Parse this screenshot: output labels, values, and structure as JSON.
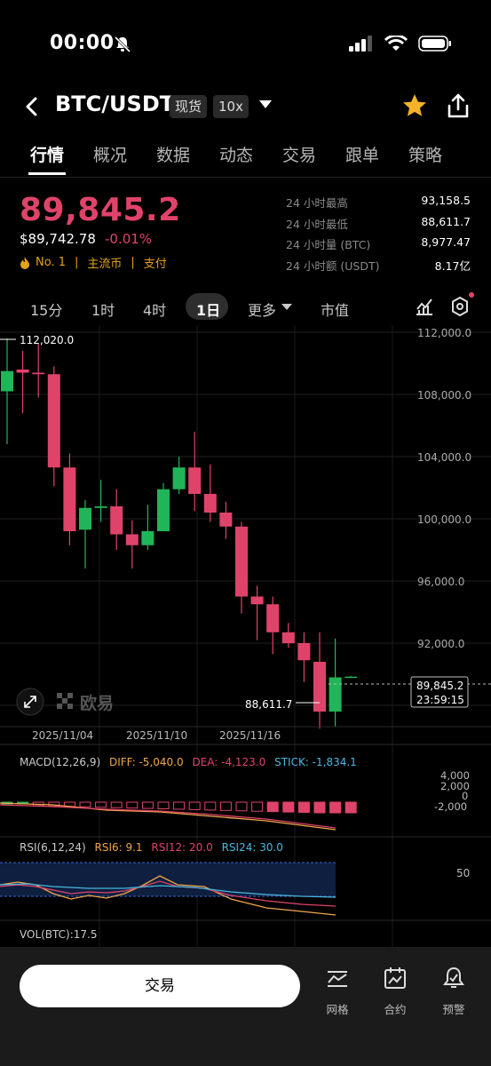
{
  "status": {
    "time": "00:00"
  },
  "header": {
    "pair": "BTC/USDT",
    "spot_tag": "现货",
    "leverage_tag": "10x"
  },
  "tabs": [
    "行情",
    "概况",
    "数据",
    "动态",
    "交易",
    "跟单",
    "策略"
  ],
  "price": {
    "last": "89,845.2",
    "usd": "$89,742.78",
    "change": "-0.01%",
    "rank": "No. 1",
    "tags": [
      "主流币",
      "支付"
    ]
  },
  "stats": [
    {
      "label": "24 小时最高",
      "value": "93,158.5"
    },
    {
      "label": "24 小时最低",
      "value": "88,611.7"
    },
    {
      "label": "24 小时量 (BTC)",
      "value": "8,977.47"
    },
    {
      "label": "24 小时额 (USDT)",
      "value": "8.17亿"
    }
  ],
  "timeframes": [
    "15分",
    "1时",
    "4时",
    "1日",
    "更多",
    "市值"
  ],
  "active_timeframe": "1日",
  "chart": {
    "high_marker": "112,020.0",
    "low_marker": "88,611.7",
    "current_price": "89,845.2",
    "countdown": "23:59:15",
    "watermark": "欧易",
    "y_ticks": [
      "112,000.0",
      "108,000.0",
      "104,000.0",
      "100,000.0",
      "96,000.0",
      "92,000.0"
    ],
    "dates": [
      "2025/11/04",
      "2025/11/10",
      "2025/11/16"
    ],
    "macd": {
      "title": "MACD(12,26,9)",
      "diff": "DIFF: -5,040.0",
      "dea": "DEA: -4,123.0",
      "stick": "STICK: -1,834.1",
      "ticks": [
        "4,000",
        "2,000",
        "0",
        "-2,000"
      ]
    },
    "rsi": {
      "title": "RSI(6,12,24)",
      "rsi6": "RSI6: 9.1",
      "rsi12": "RSI12: 20.0",
      "rsi24": "RSI24: 30.0",
      "tick": "50"
    },
    "vol": {
      "title": "VOL(BTC):17.5"
    }
  },
  "colors": {
    "up": "#21b559",
    "down": "#e0436a",
    "accent": "#e3a21a"
  },
  "bottom": {
    "trade_label": "交易",
    "items": [
      {
        "label": "网格",
        "icon": "grid-chart-icon"
      },
      {
        "label": "合约",
        "icon": "contract-icon"
      },
      {
        "label": "预警",
        "icon": "alert-bell-icon"
      }
    ]
  }
}
